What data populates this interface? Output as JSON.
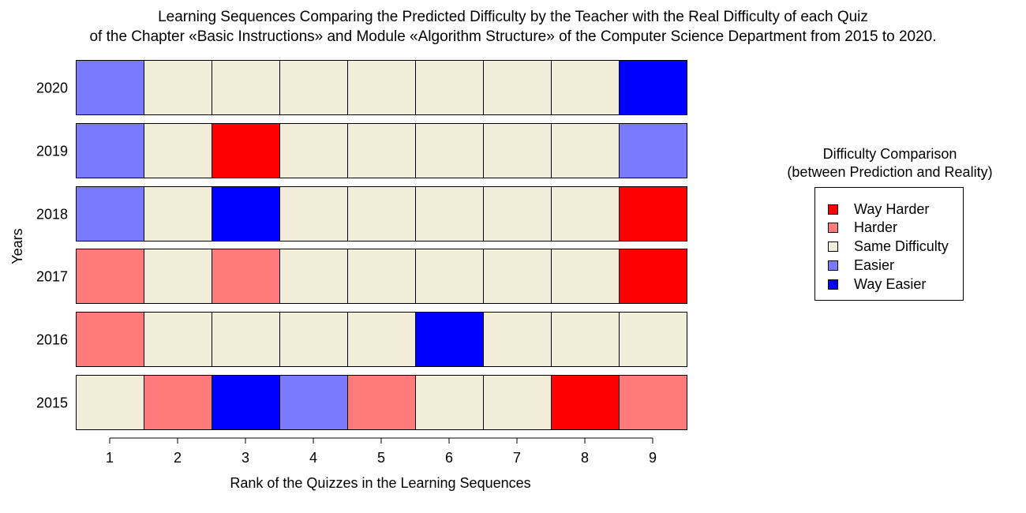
{
  "chart_data": {
    "type": "heatmap",
    "title_lines": [
      "Learning Sequences Comparing the Predicted Difficulty by the Teacher with the Real Difficulty of each Quiz",
      "of the Chapter «Basic Instructions» and Module «Algorithm Structure» of the Computer Science Department from 2015 to 2020."
    ],
    "xlabel": "Rank of the Quizzes in the Learning Sequences",
    "ylabel": "Years",
    "x": [
      "1",
      "2",
      "3",
      "4",
      "5",
      "6",
      "7",
      "8",
      "9"
    ],
    "y": [
      "2020",
      "2019",
      "2018",
      "2017",
      "2016",
      "2015"
    ],
    "legend_title": [
      "Difficulty Comparison",
      "(between Prediction and Reality)"
    ],
    "legend_position": "right",
    "categories": [
      {
        "label": "Way Harder",
        "color": "#FF0000"
      },
      {
        "label": "Harder",
        "color": "#FF7A7A"
      },
      {
        "label": "Same Difficulty",
        "color": "#F2EDD8"
      },
      {
        "label": "Easier",
        "color": "#7A7AFF"
      },
      {
        "label": "Way Easier",
        "color": "#0000FF"
      }
    ],
    "rows": [
      {
        "year": "2020",
        "values": [
          "Easier",
          "Same Difficulty",
          "Same Difficulty",
          "Same Difficulty",
          "Same Difficulty",
          "Same Difficulty",
          "Same Difficulty",
          "Same Difficulty",
          "Way Easier"
        ]
      },
      {
        "year": "2019",
        "values": [
          "Easier",
          "Same Difficulty",
          "Way Harder",
          "Same Difficulty",
          "Same Difficulty",
          "Same Difficulty",
          "Same Difficulty",
          "Same Difficulty",
          "Easier"
        ]
      },
      {
        "year": "2018",
        "values": [
          "Easier",
          "Same Difficulty",
          "Way Easier",
          "Same Difficulty",
          "Same Difficulty",
          "Same Difficulty",
          "Same Difficulty",
          "Same Difficulty",
          "Way Harder"
        ]
      },
      {
        "year": "2017",
        "values": [
          "Harder",
          "Same Difficulty",
          "Harder",
          "Same Difficulty",
          "Same Difficulty",
          "Same Difficulty",
          "Same Difficulty",
          "Same Difficulty",
          "Way Harder"
        ]
      },
      {
        "year": "2016",
        "values": [
          "Harder",
          "Same Difficulty",
          "Same Difficulty",
          "Same Difficulty",
          "Same Difficulty",
          "Way Easier",
          "Same Difficulty",
          "Same Difficulty",
          "Same Difficulty"
        ]
      },
      {
        "year": "2015",
        "values": [
          "Same Difficulty",
          "Harder",
          "Way Easier",
          "Easier",
          "Harder",
          "Same Difficulty",
          "Same Difficulty",
          "Way Harder",
          "Harder"
        ]
      }
    ]
  }
}
